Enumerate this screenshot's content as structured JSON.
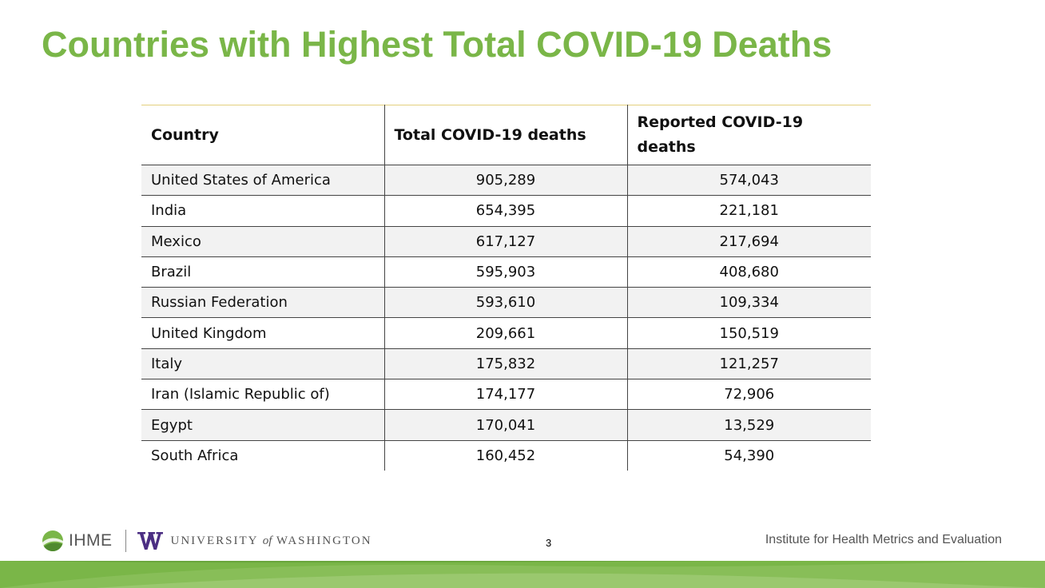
{
  "slide": {
    "title": "Countries with Highest Total COVID-19 Deaths",
    "page_number": "3"
  },
  "table": {
    "headers": {
      "country": "Country",
      "total": "Total COVID-19 deaths",
      "reported": "Reported COVID-19 deaths"
    },
    "rows": [
      {
        "country": "United States of America",
        "total": "905,289",
        "reported": "574,043"
      },
      {
        "country": "India",
        "total": "654,395",
        "reported": "221,181"
      },
      {
        "country": "Mexico",
        "total": "617,127",
        "reported": "217,694"
      },
      {
        "country": "Brazil",
        "total": "595,903",
        "reported": "408,680"
      },
      {
        "country": "Russian Federation",
        "total": "593,610",
        "reported": "109,334"
      },
      {
        "country": "United Kingdom",
        "total": "209,661",
        "reported": "150,519"
      },
      {
        "country": "Italy",
        "total": "175,832",
        "reported": "121,257"
      },
      {
        "country": "Iran (Islamic Republic of)",
        "total": "174,177",
        "reported": "72,906"
      },
      {
        "country": "Egypt",
        "total": "170,041",
        "reported": "13,529"
      },
      {
        "country": "South Africa",
        "total": "160,452",
        "reported": "54,390"
      }
    ]
  },
  "footer": {
    "ihme_logo_text": "IHME",
    "uw_logo_text_before": "UNIVERSITY ",
    "uw_logo_text_of": "of",
    "uw_logo_text_after": " WASHINGTON",
    "institute_name": "Institute for Health Metrics and Evaluation"
  },
  "colors": {
    "title_green": "#7ab648",
    "band_green": "#7ab648",
    "band_light": "#a6cf7d",
    "header_rule": "#e3cf7e",
    "row_shade": "#f2f2f2",
    "uw_purple": "#4b2e83"
  },
  "icons": {
    "ihme_mark": "ihme-logo-icon",
    "uw_mark": "uw-w-logo-icon"
  }
}
